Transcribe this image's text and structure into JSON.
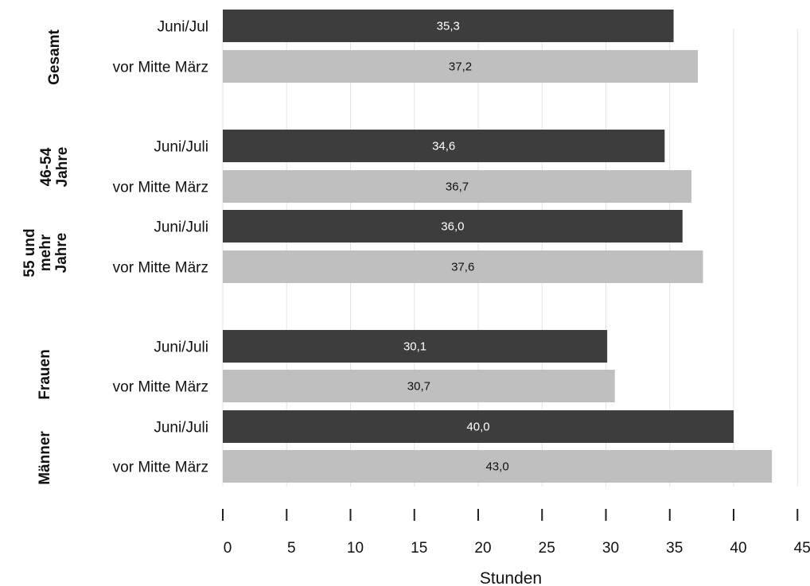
{
  "chart_data": {
    "type": "bar",
    "orientation": "horizontal",
    "xlabel": "Stunden",
    "xlim": [
      0,
      45
    ],
    "xticks": [
      "0",
      "5",
      "10",
      "15",
      "20",
      "25",
      "30",
      "35",
      "40",
      "45"
    ],
    "grid": "vertical",
    "colors": {
      "juni_juli": "#3d3d3d",
      "vor_mitte_maerz": "#bfbfbf",
      "grid": "#e3e3e3",
      "axis": "#222222"
    },
    "bars": [
      {
        "label": "Juni/Jul",
        "group": "Gesamt",
        "period": "juni_juli",
        "value": 35.3,
        "value_label": "35,3"
      },
      {
        "label": "vor Mitte März",
        "group": "Gesamt",
        "period": "vor_mitte_maerz",
        "value": 37.2,
        "value_label": "37,2"
      },
      {
        "label": "Juni/Juli",
        "group": "46-54 Jahre",
        "period": "juni_juli",
        "value": 34.6,
        "value_label": "34,6"
      },
      {
        "label": "vor Mitte März",
        "group": "46-54 Jahre",
        "period": "vor_mitte_maerz",
        "value": 36.7,
        "value_label": "36,7"
      },
      {
        "label": "Juni/Juli",
        "group": "55 und mehr Jahre",
        "period": "juni_juli",
        "value": 36.0,
        "value_label": "36,0"
      },
      {
        "label": "vor Mitte März",
        "group": "55 und mehr Jahre",
        "period": "vor_mitte_maerz",
        "value": 37.6,
        "value_label": "37,6"
      },
      {
        "label": "Juni/Juli",
        "group": "Frauen",
        "period": "juni_juli",
        "value": 30.1,
        "value_label": "30,1"
      },
      {
        "label": "vor Mitte März",
        "group": "Frauen",
        "period": "vor_mitte_maerz",
        "value": 30.7,
        "value_label": "30,7"
      },
      {
        "label": "Juni/Juli",
        "group": "Männer",
        "period": "juni_juli",
        "value": 40.0,
        "value_label": "40,0"
      },
      {
        "label": "vor Mitte März",
        "group": "Männer",
        "period": "vor_mitte_maerz",
        "value": 43.0,
        "value_label": "43,0"
      }
    ],
    "groups": [
      {
        "name": "Gesamt",
        "lines": [
          "Gesamt"
        ]
      },
      {
        "name": "46-54 Jahre",
        "lines": [
          "46-54",
          "Jahre"
        ]
      },
      {
        "name": "55 und mehr Jahre",
        "lines": [
          "55 und",
          "mehr",
          "Jahre"
        ]
      },
      {
        "name": "Frauen",
        "lines": [
          "Frauen"
        ]
      },
      {
        "name": "Männer",
        "lines": [
          "Männer"
        ]
      }
    ]
  }
}
